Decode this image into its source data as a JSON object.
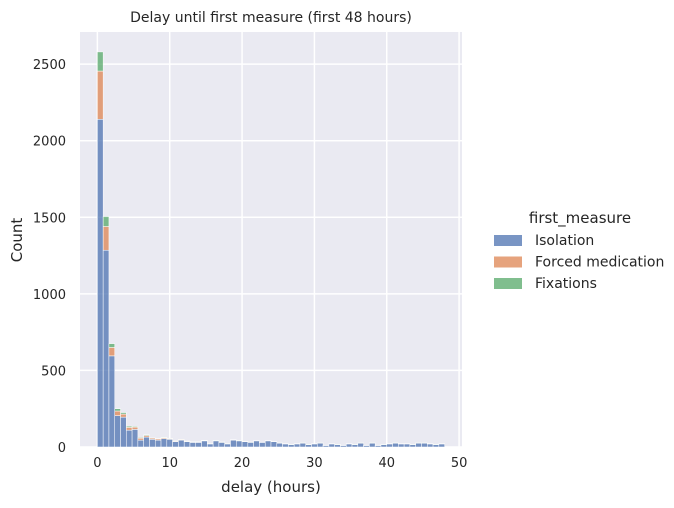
{
  "chart_data": {
    "type": "bar",
    "subtype": "stacked-histogram",
    "title": "Delay until first measure (first 48 hours)",
    "xlabel": "delay (hours)",
    "ylabel": "Count",
    "xlim": [
      -2.4,
      50.4
    ],
    "ylim": [
      0,
      2710
    ],
    "xticks": [
      0,
      10,
      20,
      30,
      40,
      50
    ],
    "yticks": [
      0,
      500,
      1000,
      1500,
      2000,
      2500
    ],
    "grid": true,
    "legend_title": "first_measure",
    "legend_position": "right",
    "bin_width": 0.8,
    "x": [
      0,
      0.8,
      1.6,
      2.4,
      3.2,
      4.0,
      4.8,
      5.6,
      6.4,
      7.2,
      8.0,
      8.8,
      9.6,
      10.4,
      11.2,
      12.0,
      12.8,
      13.6,
      14.4,
      15.2,
      16.0,
      16.8,
      17.6,
      18.4,
      19.2,
      20.0,
      20.8,
      21.6,
      22.4,
      23.2,
      24.0,
      24.8,
      25.6,
      26.4,
      27.2,
      28.0,
      28.8,
      29.6,
      30.4,
      31.2,
      32.0,
      32.8,
      33.6,
      34.4,
      35.2,
      36.0,
      36.8,
      37.6,
      38.4,
      39.2,
      40.0,
      40.8,
      41.6,
      42.4,
      43.2,
      44.0,
      44.8,
      45.6,
      46.4,
      47.2
    ],
    "series": [
      {
        "name": "Isolation",
        "color": "#4c72b0",
        "values": [
          2140,
          1285,
          595,
          205,
          195,
          110,
          115,
          45,
          65,
          50,
          45,
          55,
          50,
          35,
          45,
          35,
          30,
          30,
          40,
          20,
          40,
          30,
          20,
          45,
          40,
          35,
          30,
          40,
          30,
          40,
          35,
          25,
          20,
          15,
          20,
          25,
          15,
          20,
          25,
          10,
          20,
          15,
          10,
          20,
          15,
          25,
          10,
          25,
          10,
          15,
          20,
          25,
          20,
          20,
          15,
          25,
          25,
          20,
          15,
          20
        ]
      },
      {
        "name": "Forced medication",
        "color": "#dd8452",
        "values": [
          315,
          155,
          55,
          30,
          20,
          18,
          15,
          12,
          10,
          8,
          8,
          6,
          5,
          4,
          4,
          3,
          3,
          3,
          3,
          2,
          2,
          2,
          2,
          2,
          2,
          2,
          2,
          1,
          1,
          1,
          1,
          1,
          1,
          1,
          1,
          1,
          1,
          1,
          1,
          1,
          1,
          1,
          1,
          1,
          1,
          1,
          1,
          1,
          1,
          1,
          1,
          1,
          1,
          1,
          1,
          1,
          1,
          1,
          1,
          1
        ]
      },
      {
        "name": "Fixations",
        "color": "#55a868",
        "values": [
          125,
          65,
          25,
          15,
          10,
          8,
          5,
          5,
          5,
          2,
          2,
          2,
          2,
          1,
          1,
          1,
          1,
          1,
          1,
          1,
          1,
          1,
          1,
          1,
          1,
          1,
          1,
          1,
          1,
          1,
          1,
          1,
          1,
          1,
          1,
          1,
          1,
          1,
          1,
          1,
          1,
          1,
          1,
          1,
          1,
          1,
          1,
          1,
          1,
          1,
          1,
          1,
          1,
          1,
          1,
          1,
          1,
          1,
          1,
          1
        ]
      }
    ]
  }
}
